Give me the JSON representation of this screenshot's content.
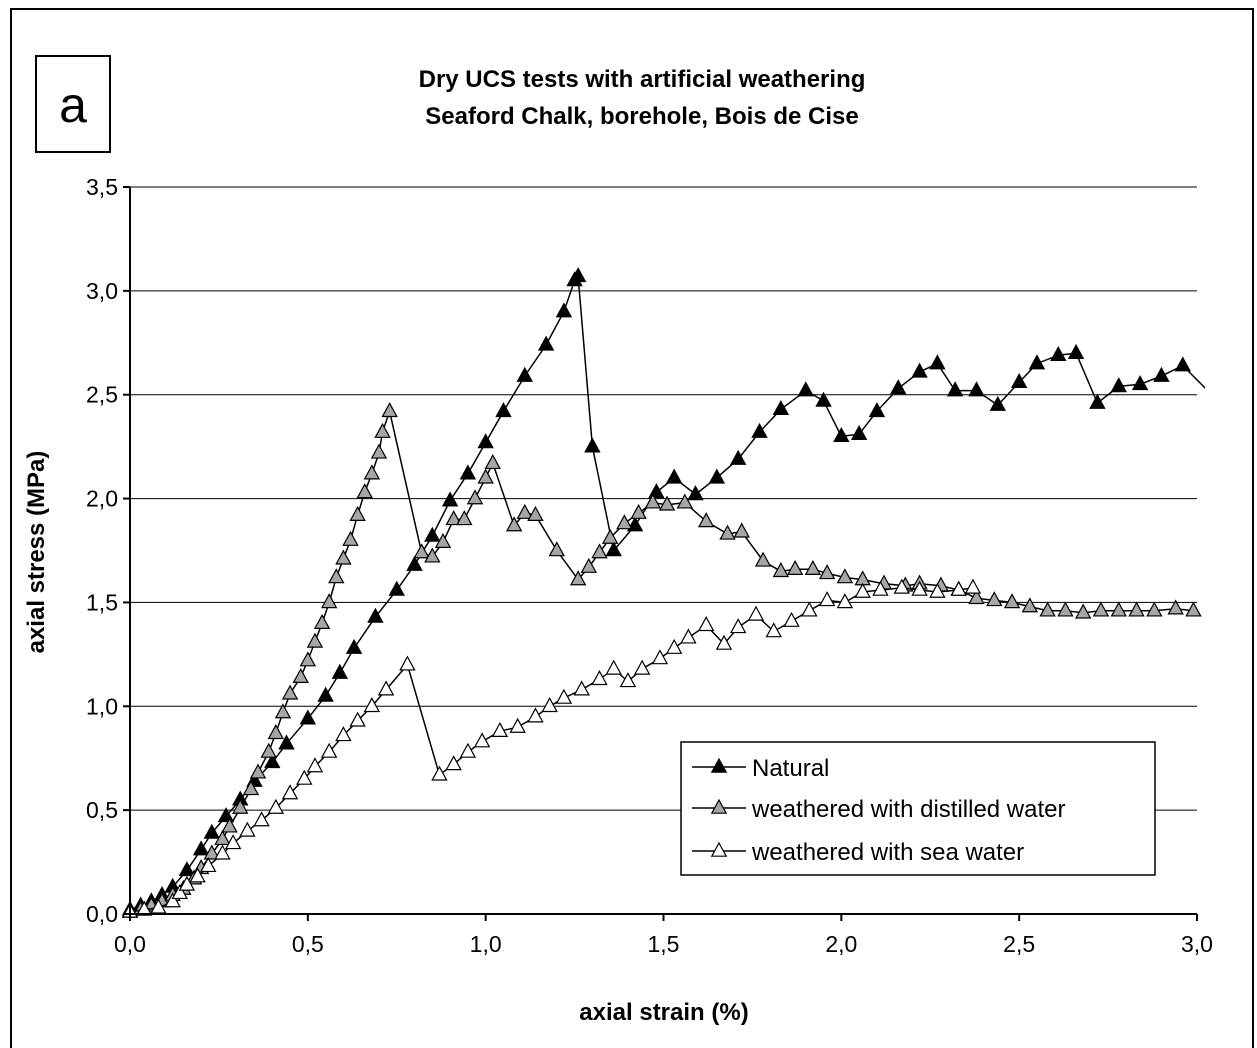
{
  "panel_label": "a",
  "chart_data": {
    "type": "line",
    "title": "Dry UCS tests with artificial weathering",
    "subtitle": "Seaford Chalk, borehole, Bois de Cise",
    "xlabel": "axial strain (%)",
    "ylabel": "axial stress (MPa)",
    "xlim": [
      0,
      3
    ],
    "ylim": [
      0,
      3.5
    ],
    "x_ticks": [
      0,
      0.5,
      1,
      1.5,
      2,
      2.5,
      3
    ],
    "x_tick_labels": [
      "0,0",
      "0,5",
      "1,0",
      "1,5",
      "2,0",
      "2,5",
      "3,0"
    ],
    "y_ticks": [
      0,
      0.5,
      1,
      1.5,
      2,
      2.5,
      3,
      3.5
    ],
    "y_tick_labels": [
      "0,0",
      "0,5",
      "1,0",
      "1,5",
      "2,0",
      "2,5",
      "3,0",
      "3,5"
    ],
    "grid": "horizontal",
    "legend_position": "bottom-right",
    "series": [
      {
        "name": "Natural",
        "marker_fill": "#000000",
        "points": [
          [
            0,
            0.02
          ],
          [
            0.03,
            0.04
          ],
          [
            0.06,
            0.06
          ],
          [
            0.09,
            0.09
          ],
          [
            0.12,
            0.13
          ],
          [
            0.16,
            0.21
          ],
          [
            0.2,
            0.31
          ],
          [
            0.23,
            0.39
          ],
          [
            0.27,
            0.47
          ],
          [
            0.31,
            0.55
          ],
          [
            0.35,
            0.64
          ],
          [
            0.4,
            0.73
          ],
          [
            0.44,
            0.82
          ],
          [
            0.5,
            0.94
          ],
          [
            0.55,
            1.05
          ],
          [
            0.59,
            1.16
          ],
          [
            0.63,
            1.28
          ],
          [
            0.69,
            1.43
          ],
          [
            0.75,
            1.56
          ],
          [
            0.8,
            1.68
          ],
          [
            0.85,
            1.82
          ],
          [
            0.9,
            1.99
          ],
          [
            0.95,
            2.12
          ],
          [
            1.0,
            2.27
          ],
          [
            1.05,
            2.42
          ],
          [
            1.11,
            2.59
          ],
          [
            1.17,
            2.74
          ],
          [
            1.22,
            2.9
          ],
          [
            1.25,
            3.05
          ],
          [
            1.26,
            3.07
          ],
          [
            1.3,
            2.25
          ],
          [
            1.36,
            1.75
          ],
          [
            1.42,
            1.87
          ],
          [
            1.48,
            2.03
          ],
          [
            1.53,
            2.1
          ],
          [
            1.59,
            2.02
          ],
          [
            1.65,
            2.1
          ],
          [
            1.71,
            2.19
          ],
          [
            1.77,
            2.32
          ],
          [
            1.83,
            2.43
          ],
          [
            1.9,
            2.52
          ],
          [
            1.95,
            2.47
          ],
          [
            2.0,
            2.3
          ],
          [
            2.05,
            2.31
          ],
          [
            2.1,
            2.42
          ],
          [
            2.16,
            2.53
          ],
          [
            2.22,
            2.61
          ],
          [
            2.27,
            2.65
          ],
          [
            2.32,
            2.52
          ],
          [
            2.38,
            2.52
          ],
          [
            2.44,
            2.45
          ],
          [
            2.5,
            2.56
          ],
          [
            2.55,
            2.65
          ],
          [
            2.61,
            2.69
          ],
          [
            2.66,
            2.7
          ],
          [
            2.72,
            2.46
          ],
          [
            2.78,
            2.54
          ],
          [
            2.84,
            2.55
          ],
          [
            2.9,
            2.59
          ],
          [
            2.96,
            2.64
          ],
          [
            3.03,
            2.52
          ]
        ]
      },
      {
        "name": "weathered with distilled water",
        "marker_fill": "#a6a6a6",
        "points": [
          [
            0,
            0.01
          ],
          [
            0.03,
            0.02
          ],
          [
            0.06,
            0.04
          ],
          [
            0.09,
            0.06
          ],
          [
            0.12,
            0.09
          ],
          [
            0.15,
            0.12
          ],
          [
            0.18,
            0.17
          ],
          [
            0.2,
            0.22
          ],
          [
            0.23,
            0.29
          ],
          [
            0.26,
            0.36
          ],
          [
            0.28,
            0.42
          ],
          [
            0.31,
            0.51
          ],
          [
            0.34,
            0.6
          ],
          [
            0.36,
            0.68
          ],
          [
            0.39,
            0.78
          ],
          [
            0.41,
            0.87
          ],
          [
            0.43,
            0.97
          ],
          [
            0.45,
            1.06
          ],
          [
            0.48,
            1.14
          ],
          [
            0.5,
            1.22
          ],
          [
            0.52,
            1.31
          ],
          [
            0.54,
            1.4
          ],
          [
            0.56,
            1.5
          ],
          [
            0.58,
            1.62
          ],
          [
            0.6,
            1.71
          ],
          [
            0.62,
            1.8
          ],
          [
            0.64,
            1.92
          ],
          [
            0.66,
            2.03
          ],
          [
            0.68,
            2.12
          ],
          [
            0.7,
            2.22
          ],
          [
            0.71,
            2.32
          ],
          [
            0.73,
            2.42
          ],
          [
            0.82,
            1.74
          ],
          [
            0.85,
            1.72
          ],
          [
            0.88,
            1.79
          ],
          [
            0.91,
            1.9
          ],
          [
            0.94,
            1.9
          ],
          [
            0.97,
            2.0
          ],
          [
            1.0,
            2.1
          ],
          [
            1.02,
            2.17
          ],
          [
            1.08,
            1.87
          ],
          [
            1.11,
            1.93
          ],
          [
            1.14,
            1.92
          ],
          [
            1.2,
            1.75
          ],
          [
            1.26,
            1.61
          ],
          [
            1.29,
            1.67
          ],
          [
            1.32,
            1.74
          ],
          [
            1.35,
            1.81
          ],
          [
            1.39,
            1.88
          ],
          [
            1.43,
            1.93
          ],
          [
            1.47,
            1.98
          ],
          [
            1.51,
            1.97
          ],
          [
            1.56,
            1.98
          ],
          [
            1.62,
            1.89
          ],
          [
            1.68,
            1.83
          ],
          [
            1.72,
            1.84
          ],
          [
            1.78,
            1.7
          ],
          [
            1.83,
            1.65
          ],
          [
            1.87,
            1.66
          ],
          [
            1.92,
            1.66
          ],
          [
            1.96,
            1.64
          ],
          [
            2.01,
            1.62
          ],
          [
            2.06,
            1.61
          ],
          [
            2.12,
            1.59
          ],
          [
            2.18,
            1.58
          ],
          [
            2.22,
            1.59
          ],
          [
            2.28,
            1.58
          ],
          [
            2.33,
            1.56
          ],
          [
            2.38,
            1.52
          ],
          [
            2.43,
            1.51
          ],
          [
            2.48,
            1.5
          ],
          [
            2.53,
            1.48
          ],
          [
            2.58,
            1.46
          ],
          [
            2.63,
            1.46
          ],
          [
            2.68,
            1.45
          ],
          [
            2.73,
            1.46
          ],
          [
            2.78,
            1.46
          ],
          [
            2.83,
            1.46
          ],
          [
            2.88,
            1.46
          ],
          [
            2.94,
            1.47
          ],
          [
            2.99,
            1.46
          ]
        ]
      },
      {
        "name": "weathered with sea water",
        "marker_fill": "#ffffff",
        "points": [
          [
            0,
            0.01
          ],
          [
            0.04,
            0.02
          ],
          [
            0.08,
            0.03
          ],
          [
            0.12,
            0.06
          ],
          [
            0.14,
            0.1
          ],
          [
            0.16,
            0.14
          ],
          [
            0.19,
            0.18
          ],
          [
            0.22,
            0.23
          ],
          [
            0.26,
            0.29
          ],
          [
            0.29,
            0.34
          ],
          [
            0.33,
            0.4
          ],
          [
            0.37,
            0.45
          ],
          [
            0.41,
            0.51
          ],
          [
            0.45,
            0.58
          ],
          [
            0.49,
            0.65
          ],
          [
            0.52,
            0.71
          ],
          [
            0.56,
            0.78
          ],
          [
            0.6,
            0.86
          ],
          [
            0.64,
            0.93
          ],
          [
            0.68,
            1.0
          ],
          [
            0.72,
            1.08
          ],
          [
            0.78,
            1.2
          ],
          [
            0.87,
            0.67
          ],
          [
            0.91,
            0.72
          ],
          [
            0.95,
            0.78
          ],
          [
            0.99,
            0.83
          ],
          [
            1.04,
            0.88
          ],
          [
            1.09,
            0.9
          ],
          [
            1.14,
            0.95
          ],
          [
            1.18,
            1.0
          ],
          [
            1.22,
            1.04
          ],
          [
            1.27,
            1.08
          ],
          [
            1.32,
            1.13
          ],
          [
            1.36,
            1.18
          ],
          [
            1.4,
            1.12
          ],
          [
            1.44,
            1.18
          ],
          [
            1.49,
            1.23
          ],
          [
            1.53,
            1.28
          ],
          [
            1.57,
            1.33
          ],
          [
            1.62,
            1.39
          ],
          [
            1.67,
            1.3
          ],
          [
            1.71,
            1.38
          ],
          [
            1.76,
            1.44
          ],
          [
            1.81,
            1.36
          ],
          [
            1.86,
            1.41
          ],
          [
            1.91,
            1.46
          ],
          [
            1.96,
            1.51
          ],
          [
            2.01,
            1.5
          ],
          [
            2.06,
            1.55
          ],
          [
            2.11,
            1.56
          ],
          [
            2.17,
            1.57
          ],
          [
            2.22,
            1.56
          ],
          [
            2.27,
            1.55
          ],
          [
            2.33,
            1.56
          ],
          [
            2.37,
            1.57
          ]
        ]
      }
    ]
  }
}
